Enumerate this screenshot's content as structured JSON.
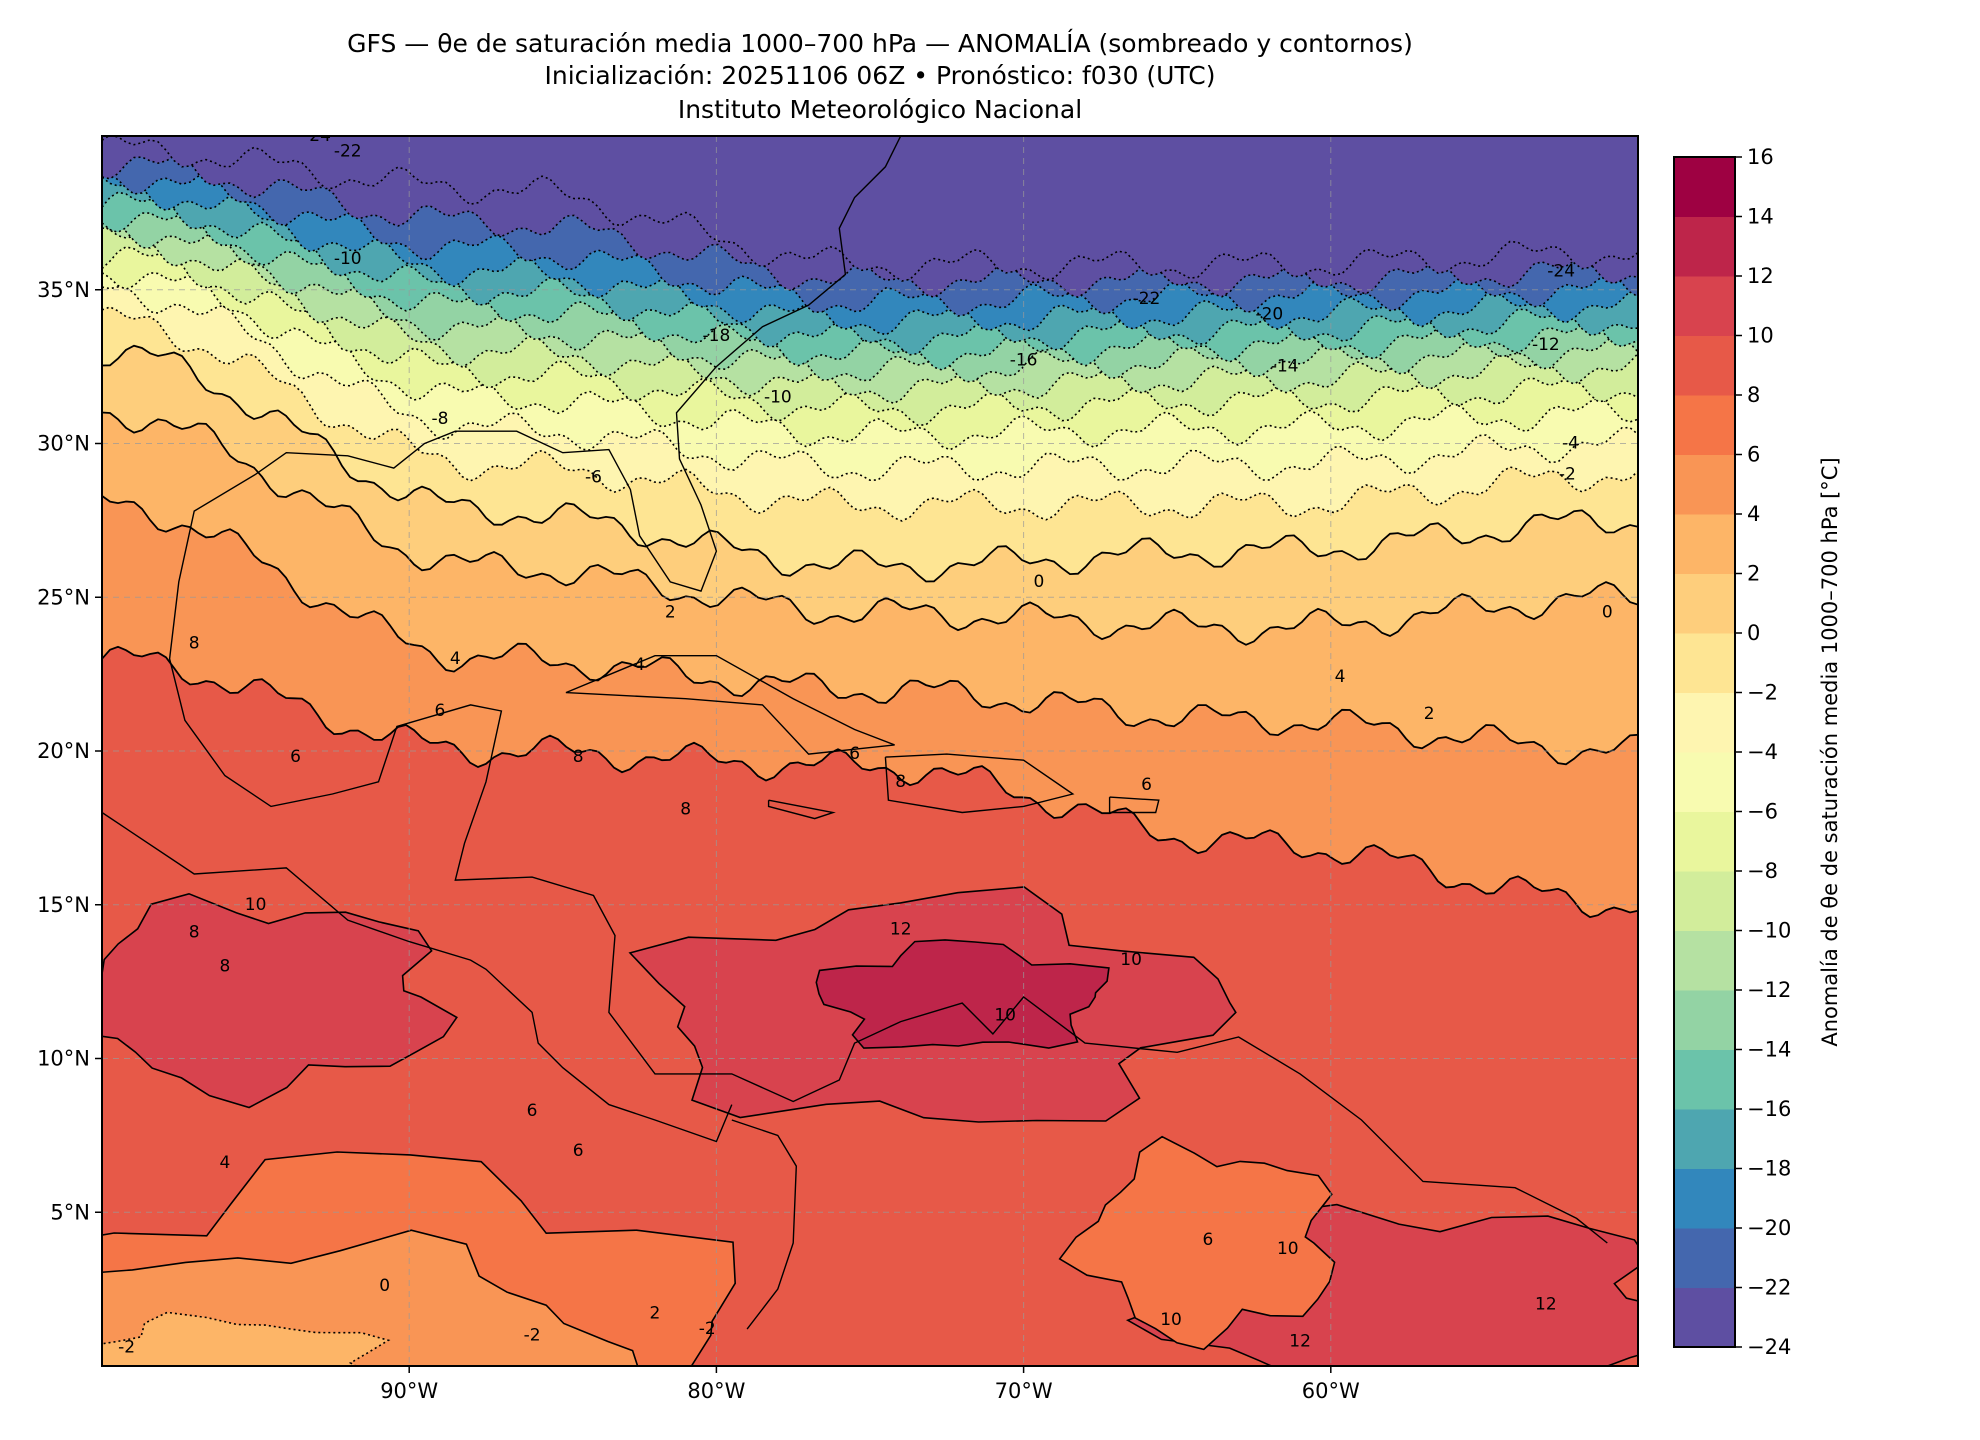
{
  "chart_data": {
    "type": "heatmap",
    "title": "GFS — θe de saturación media 1000–700 hPa — ANOMALÍA (sombreado y contornos)",
    "subtitle": "Inicialización: 20251106 06Z   •   Pronóstico: f030 (UTC)",
    "institution": "Instituto Meteorológico Nacional",
    "xlim": [
      -100,
      -50
    ],
    "ylim": [
      0,
      40
    ],
    "x_ticks": [
      -90,
      -80,
      -70,
      -60
    ],
    "x_tick_labels": [
      "90°W",
      "80°W",
      "70°W",
      "60°W"
    ],
    "y_ticks": [
      35,
      30,
      25,
      20,
      15,
      10,
      5
    ],
    "y_tick_labels": [
      "35°N",
      "30°N",
      "25°N",
      "20°N",
      "15°N",
      "10°N",
      "5°N"
    ],
    "grid": true,
    "colorbar": {
      "label": "Anomalía de θe de saturación media 1000–700 hPa [°C]",
      "levels": [
        -24,
        -22,
        -20,
        -18,
        -16,
        -14,
        -12,
        -10,
        -8,
        -6,
        -4,
        -2,
        0,
        2,
        4,
        6,
        8,
        10,
        12,
        14,
        16
      ],
      "tick_labels": [
        "−24",
        "−22",
        "−20",
        "−18",
        "−16",
        "−14",
        "−12",
        "−10",
        "−8",
        "−6",
        "−4",
        "−2",
        "0",
        "2",
        "4",
        "6",
        "8",
        "10",
        "12",
        "14",
        "16"
      ],
      "colors": [
        "#5e4fa2",
        "#4467ae",
        "#3287bc",
        "#4ea6b0",
        "#6bc3aa",
        "#93d3a4",
        "#b5e1a2",
        "#d2ed9b",
        "#e9f69d",
        "#f8fbb0",
        "#fef5b0",
        "#fee593",
        "#fece7c",
        "#fdb567",
        "#f99555",
        "#f57547",
        "#e75948",
        "#d8434e",
        "#be254a",
        "#9e0142"
      ]
    },
    "contour_labels": [
      "-24",
      "-22",
      "-10",
      "-18",
      "-16",
      "-14",
      "-12",
      "-10",
      "-22",
      "-20",
      "-24",
      "-8",
      "-6",
      "-4",
      "-2",
      "0",
      "2",
      "4",
      "4",
      "6",
      "8",
      "8",
      "6",
      "6",
      "6",
      "8",
      "10",
      "12",
      "10",
      "10",
      "8",
      "6",
      "4",
      "6",
      "0",
      "-2",
      "-2",
      "-2",
      "2",
      "10",
      "12",
      "12",
      "10",
      "6",
      "2",
      "0",
      "4",
      "8",
      "8"
    ]
  }
}
